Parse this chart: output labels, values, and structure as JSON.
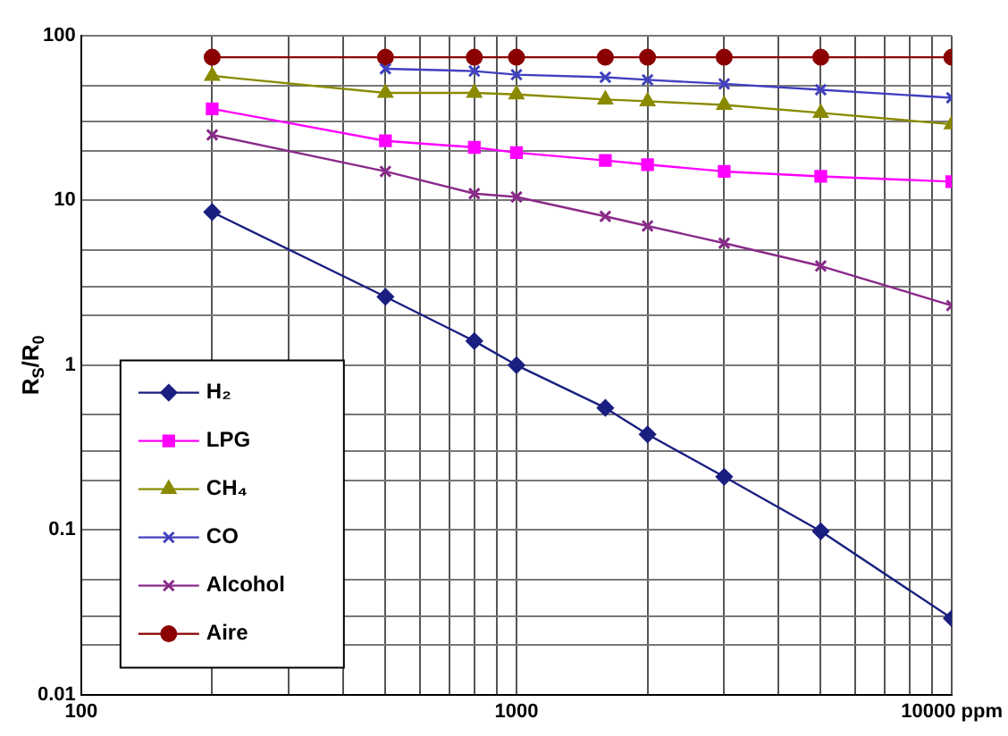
{
  "chart_data": {
    "type": "line",
    "ylabel": "R$_{S}$/R$_{0}$",
    "log": "xy",
    "grid": true,
    "legend": "left",
    "x": [
      200,
      500,
      800,
      1000,
      1600,
      2000,
      3000,
      5000,
      10000
    ],
    "xlim": [
      100,
      10000
    ],
    "xticks": [
      100,
      {
        "value": 200,
        "label": null
      },
      {
        "value": 300,
        "label": null
      },
      {
        "value": 400,
        "label": null
      },
      {
        "value": 500,
        "label": null
      },
      {
        "value": 600,
        "label": null
      },
      {
        "value": 700,
        "label": null
      },
      {
        "value": 800,
        "label": null
      },
      {
        "value": 900,
        "label": null
      },
      1000,
      {
        "value": 2000,
        "label": null
      },
      {
        "value": 3000,
        "label": null
      },
      {
        "value": 4000,
        "label": null
      },
      {
        "value": 5000,
        "label": null
      },
      {
        "value": 6000,
        "label": null
      },
      {
        "value": 7000,
        "label": null
      },
      {
        "value": 8000,
        "label": null
      },
      {
        "value": 9000,
        "label": null
      },
      {
        "value": 10000,
        "label": "10000 ppm"
      }
    ],
    "ylim": [
      0.01,
      100
    ],
    "yticks": [
      0.01,
      {
        "value": 0.02,
        "label": null
      },
      {
        "value": 0.03,
        "label": null
      },
      {
        "value": 0.05,
        "label": null
      },
      0.1,
      {
        "value": 0.2,
        "label": null
      },
      {
        "value": 0.3,
        "label": null
      },
      {
        "value": 0.5,
        "label": null
      },
      1,
      {
        "value": 2,
        "label": null
      },
      {
        "value": 3,
        "label": null
      },
      {
        "value": 5,
        "label": null
      },
      10,
      {
        "value": 20,
        "label": null
      },
      {
        "value": 30,
        "label": null
      },
      {
        "value": 50,
        "label": null
      },
      100
    ],
    "series": [
      {
        "name": "H₂",
        "color": "#1a1f80",
        "marker": "diamond",
        "values": [
          8.5,
          2.6,
          1.4,
          1.0,
          0.55,
          0.38,
          0.21,
          0.098,
          0.029
        ]
      },
      {
        "name": "LPG",
        "color": "#ff00ff",
        "marker": "square",
        "values": [
          36,
          23,
          21,
          19.5,
          17.5,
          16.5,
          15,
          14,
          13
        ]
      },
      {
        "name": "CH₄",
        "color": "#8a8a00",
        "marker": "triangle",
        "values": [
          57,
          45,
          45,
          44,
          41,
          40,
          38,
          34,
          29
        ]
      },
      {
        "name": "CO",
        "color": "#4040c0",
        "marker": "cross",
        "values": [
          null,
          63,
          61,
          58,
          56,
          54,
          51,
          47,
          42
        ]
      },
      {
        "name": "Alcohol",
        "color": "#8a2a8a",
        "marker": "cross",
        "values": [
          25,
          15,
          11,
          10.5,
          8,
          7,
          5.5,
          4,
          2.3
        ]
      },
      {
        "name": "Aire",
        "color": "#8b0000",
        "marker": "circle",
        "values": [
          74,
          74,
          74,
          74,
          74,
          74,
          74,
          74,
          74
        ]
      }
    ]
  }
}
